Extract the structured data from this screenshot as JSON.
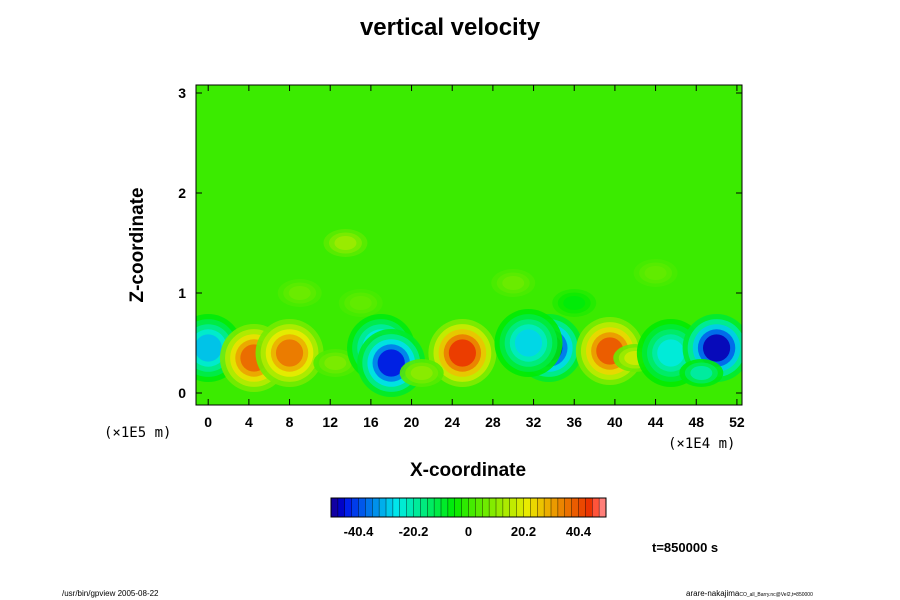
{
  "chart_data": {
    "type": "heatmap",
    "title": "vertical velocity",
    "xlabel": "X-coordinate",
    "ylabel": "Z-coordinate",
    "x_unit": "(×1E4 m)",
    "y_unit": "(×1E5 m)",
    "xlim": [
      -1.2,
      52.5
    ],
    "ylim": [
      -0.12,
      3.08
    ],
    "x_ticks": [
      "0",
      "4",
      "8",
      "12",
      "16",
      "20",
      "24",
      "28",
      "32",
      "36",
      "40",
      "44",
      "48",
      "52"
    ],
    "y_ticks": [
      "0",
      "1",
      "2",
      "3"
    ],
    "colorbar": {
      "range": [
        -50.5,
        50.5
      ],
      "ticks": [
        "-40.4",
        "-20.2",
        "0",
        "20.2",
        "40.4"
      ],
      "tick_values": [
        -40.4,
        -20.2,
        0,
        20.2,
        40.4
      ]
    },
    "features": [
      {
        "x": 0,
        "z": 0.45,
        "value": -30
      },
      {
        "x": 4.5,
        "z": 0.35,
        "value": 38
      },
      {
        "x": 8,
        "z": 0.4,
        "value": 36
      },
      {
        "x": 12.5,
        "z": 0.3,
        "value": 8
      },
      {
        "x": 17,
        "z": 0.45,
        "value": -32
      },
      {
        "x": 18,
        "z": 0.3,
        "value": -45
      },
      {
        "x": 25,
        "z": 0.4,
        "value": 44
      },
      {
        "x": 21,
        "z": 0.2,
        "value": 10
      },
      {
        "x": 33.5,
        "z": 0.45,
        "value": -46
      },
      {
        "x": 31.5,
        "z": 0.5,
        "value": -28
      },
      {
        "x": 39.5,
        "z": 0.42,
        "value": 40
      },
      {
        "x": 42,
        "z": 0.35,
        "value": 18
      },
      {
        "x": 45.5,
        "z": 0.4,
        "value": -25
      },
      {
        "x": 50,
        "z": 0.45,
        "value": -48
      },
      {
        "x": 48.5,
        "z": 0.2,
        "value": -20
      },
      {
        "x": 13.5,
        "z": 1.5,
        "value": 12
      },
      {
        "x": 9,
        "z": 1.0,
        "value": 6
      },
      {
        "x": 30,
        "z": 1.1,
        "value": 6
      },
      {
        "x": 36,
        "z": 0.9,
        "value": -6
      },
      {
        "x": 15,
        "z": 0.9,
        "value": 5
      },
      {
        "x": 44,
        "z": 1.2,
        "value": 5
      }
    ]
  },
  "time_label": "t=850000 s",
  "footer": {
    "left": "/usr/bin/gpview 2005-08-22",
    "right_main": "arare-nakajima",
    "right_small": "CO_all_Barry.nc@Vel2,t=850000"
  },
  "colors": {
    "background": "#ffffff",
    "neutral": "#2ee600"
  }
}
